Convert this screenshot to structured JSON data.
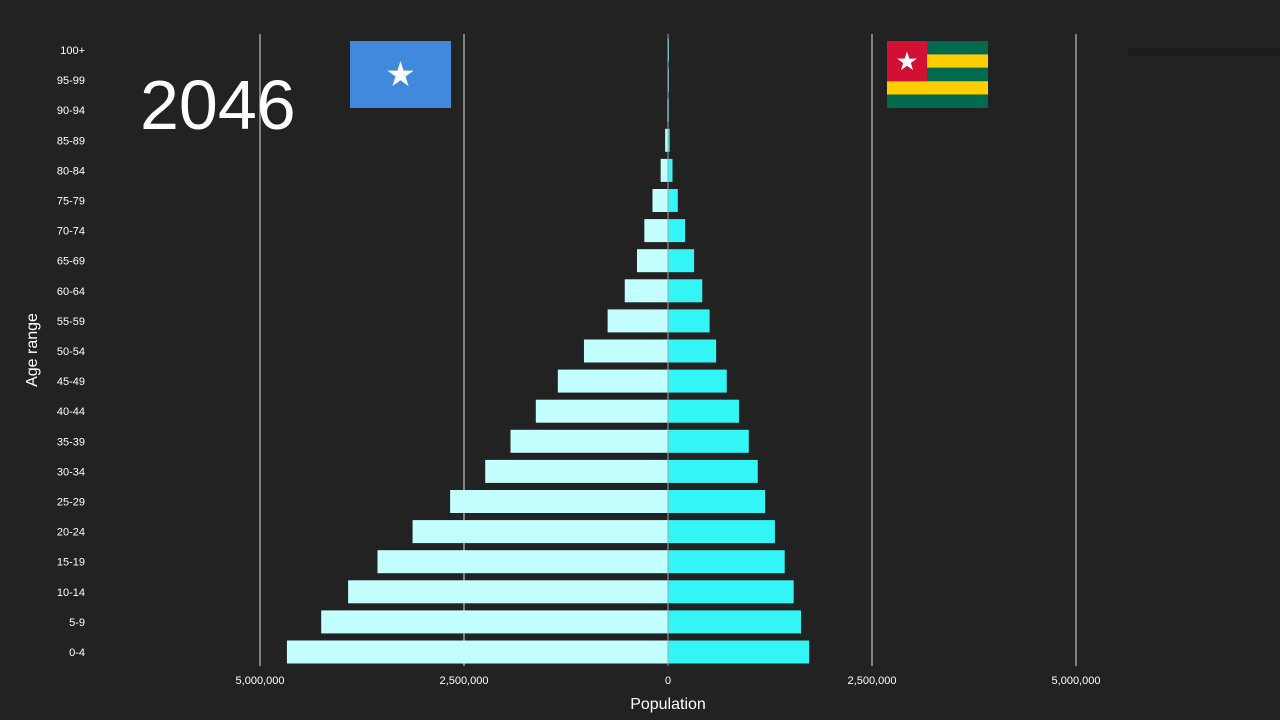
{
  "year_label": "2046",
  "flags": {
    "left": {
      "icon": "somalia-flag-icon",
      "colors": {
        "field": "#4189DD",
        "star": "#FFFFFF"
      }
    },
    "right": {
      "icon": "togo-flag-icon",
      "colors": {
        "green": "#006A4E",
        "yellow": "#FFCE00",
        "red": "#D21034",
        "star": "#FFFFFF"
      }
    }
  },
  "colors": {
    "background": "#222222",
    "left_bar": "#C4FFFF",
    "right_bar": "#33F5F5",
    "grid": "#E0E0E0",
    "text": "#FFFFFF"
  },
  "chart_data": {
    "type": "bar",
    "orientation": "horizontal-pyramid",
    "xlabel": "Population",
    "ylabel": "Age range",
    "xlim": [
      -7500000,
      7500000
    ],
    "xticks": [
      -5000000,
      -2500000,
      0,
      2500000,
      5000000
    ],
    "xtick_labels": [
      "5,000,000",
      "2,500,000",
      "0",
      "2,500,000",
      "5,000,000"
    ],
    "categories": [
      "0-4",
      "5-9",
      "10-14",
      "15-19",
      "20-24",
      "25-29",
      "30-34",
      "35-39",
      "40-44",
      "45-49",
      "50-54",
      "55-59",
      "60-64",
      "65-69",
      "70-74",
      "75-79",
      "80-84",
      "85-89",
      "90-94",
      "95-99",
      "100+"
    ],
    "series": [
      {
        "side": "left",
        "values": [
          4670000,
          4250000,
          3920000,
          3560000,
          3130000,
          2670000,
          2240000,
          1930000,
          1620000,
          1350000,
          1030000,
          740000,
          530000,
          380000,
          290000,
          190000,
          90000,
          35000,
          8000,
          2000,
          500
        ]
      },
      {
        "side": "right",
        "values": [
          1730000,
          1630000,
          1540000,
          1430000,
          1310000,
          1190000,
          1100000,
          990000,
          870000,
          720000,
          590000,
          510000,
          420000,
          320000,
          210000,
          120000,
          55000,
          20000,
          5000,
          1000,
          300
        ]
      }
    ],
    "grid": "vertical"
  }
}
